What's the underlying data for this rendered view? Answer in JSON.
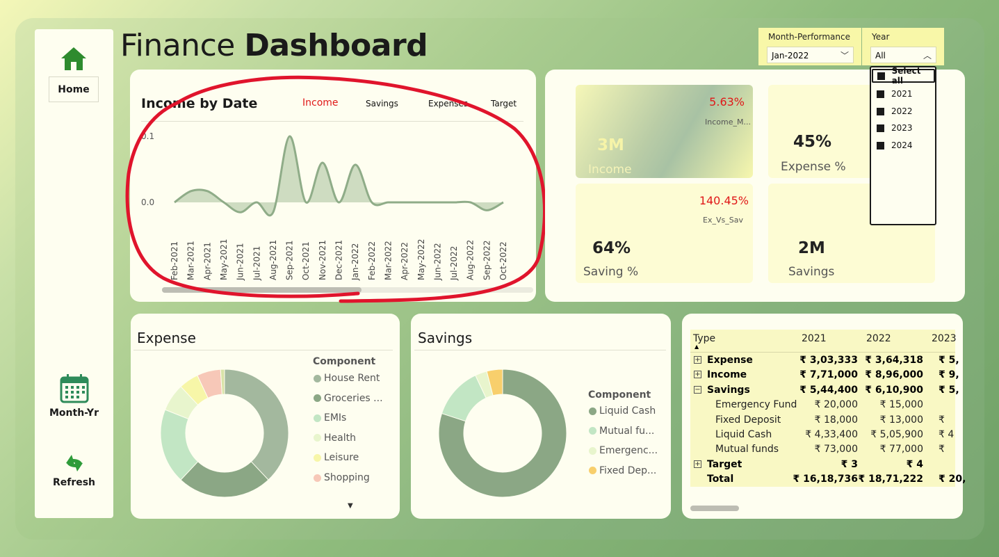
{
  "title": {
    "light": "Finance ",
    "bold": "Dashboard"
  },
  "nav": {
    "home": "Home",
    "month_yr": "Month-Yr",
    "refresh": "Refresh"
  },
  "slicers": {
    "month": {
      "label": "Month-Performance",
      "value": "Jan-2022"
    },
    "year": {
      "label": "Year",
      "value": "All",
      "options": [
        "Select all",
        "2021",
        "2022",
        "2023",
        "2024"
      ]
    }
  },
  "income_chart": {
    "title": "Income by Date",
    "tabs": [
      "Income",
      "Savings",
      "Expenses",
      "Target"
    ],
    "active_tab_color": "#e01818"
  },
  "chart_data": {
    "type": "area",
    "title": "Income by Date",
    "x": [
      "Feb-2021",
      "Mar-2021",
      "Apr-2021",
      "May-2021",
      "Jun-2021",
      "Jul-2021",
      "Aug-2021",
      "Sep-2021",
      "Oct-2021",
      "Nov-2021",
      "Dec-2021",
      "Jan-2022",
      "Feb-2022",
      "Mar-2022",
      "Apr-2022",
      "May-2022",
      "Jun-2022",
      "Jul-2022",
      "Aug-2022",
      "Sep-2022",
      "Oct-2022"
    ],
    "values": [
      0.0,
      0.017,
      0.017,
      0.0,
      -0.015,
      0.0,
      -0.015,
      0.1,
      0.0,
      0.06,
      0.0,
      0.057,
      0.0,
      0.0,
      0.0,
      0.0,
      0.0,
      0.0,
      0.0,
      -0.012,
      0.0
    ],
    "y_ticks": [
      "0.1",
      "0.0"
    ],
    "ylim": [
      -0.02,
      0.1
    ],
    "line_color": "#8fac88",
    "fill_color": "#c6d6b8"
  },
  "kpis": {
    "income": {
      "value": "3M",
      "label": "Income",
      "pct": "5.63%",
      "sub": "Income_M..."
    },
    "expense": {
      "value": "45%",
      "label": "Expense %"
    },
    "saving_pct": {
      "value": "64%",
      "label": "Saving %",
      "pct": "140.45%",
      "sub": "Ex_Vs_Sav"
    },
    "savings": {
      "value": "2M",
      "label": "Savings"
    }
  },
  "expense": {
    "title": "Expense",
    "legend_title": "Component",
    "items": [
      {
        "label": "House Rent",
        "value": 38,
        "color": "#a3b89e"
      },
      {
        "label": "Groceries ...",
        "value": 24,
        "color": "#8ba785"
      },
      {
        "label": "EMIs",
        "value": 19,
        "color": "#c2e6c4"
      },
      {
        "label": "Health",
        "value": 7,
        "color": "#e8f5cd"
      },
      {
        "label": "Leisure",
        "value": 5,
        "color": "#f7f6a8"
      },
      {
        "label": "Shopping",
        "value": 6,
        "color": "#f7c8b8"
      },
      {
        "label": "",
        "value": 1,
        "color": "#d9e3a8"
      }
    ]
  },
  "savings": {
    "title": "Savings",
    "legend_title": "Component",
    "items": [
      {
        "label": "Liquid Cash",
        "value": 80,
        "color": "#8ba785"
      },
      {
        "label": "Mutual fu...",
        "value": 13,
        "color": "#c2e6c4"
      },
      {
        "label": "Emergenc...",
        "value": 3,
        "color": "#e8f5cd"
      },
      {
        "label": "Fixed Dep...",
        "value": 4,
        "color": "#f8cf6c"
      }
    ]
  },
  "matrix": {
    "headers": [
      "Type",
      "2021",
      "2022",
      "2023"
    ],
    "rows": [
      {
        "label": "Expense",
        "expander": "+",
        "bold": true,
        "indent": false,
        "values": [
          "₹ 3,03,333",
          "₹ 3,64,318",
          "₹ 5,"
        ]
      },
      {
        "label": "Income",
        "expander": "+",
        "bold": true,
        "indent": false,
        "values": [
          "₹ 7,71,000",
          "₹ 8,96,000",
          "₹ 9,"
        ]
      },
      {
        "label": "Savings",
        "expander": "−",
        "bold": true,
        "indent": false,
        "values": [
          "₹ 5,44,400",
          "₹ 6,10,900",
          "₹ 5,"
        ]
      },
      {
        "label": "Emergency Fund",
        "expander": "",
        "bold": false,
        "indent": true,
        "values": [
          "₹ 20,000",
          "₹ 15,000",
          ""
        ]
      },
      {
        "label": "Fixed Deposit",
        "expander": "",
        "bold": false,
        "indent": true,
        "values": [
          "₹ 18,000",
          "₹ 13,000",
          "₹"
        ]
      },
      {
        "label": "Liquid Cash",
        "expander": "",
        "bold": false,
        "indent": true,
        "values": [
          "₹ 4,33,400",
          "₹ 5,05,900",
          "₹ 4"
        ]
      },
      {
        "label": "Mutual funds",
        "expander": "",
        "bold": false,
        "indent": true,
        "values": [
          "₹ 73,000",
          "₹ 77,000",
          "₹"
        ]
      },
      {
        "label": "Target",
        "expander": "+",
        "bold": true,
        "indent": false,
        "values": [
          "₹ 3",
          "₹ 4",
          ""
        ]
      },
      {
        "label": "Total",
        "expander": "",
        "bold": true,
        "indent": false,
        "values": [
          "₹ 16,18,736",
          "₹ 18,71,222",
          "₹ 20,"
        ]
      }
    ]
  },
  "colors": {
    "accent_red": "#e01818",
    "card": "#fefef0",
    "slicer": "#f8f7a8",
    "brand_green": "#2e8b2e"
  }
}
